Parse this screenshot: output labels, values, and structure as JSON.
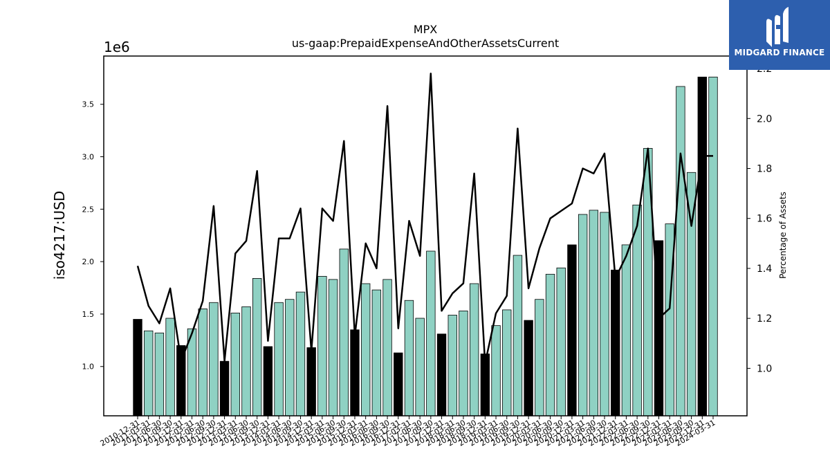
{
  "header": {
    "ticker": "MPX",
    "concept": "us-gaap:PrepaidExpenseAndOtherAssetsCurrent"
  },
  "logo": {
    "text": "MIDGARD FINANCE",
    "icon": "midgard-logo-icon",
    "background": "#2d5fae"
  },
  "colors": {
    "annual_bar": "#000000",
    "quarter_bar": "#8fd1c3",
    "line": "#000000"
  },
  "chart_data": {
    "type": "bar",
    "ylabel": "iso4217:USD",
    "y2label": "Percentage of Assets",
    "y_offset_label": "1e6",
    "ylim": [
      0.53,
      3.96
    ],
    "y2lim": [
      0.81,
      2.25
    ],
    "yticks": [
      1.0,
      1.5,
      2.0,
      2.5,
      3.0,
      3.5
    ],
    "ytick_labels": [
      "1.0",
      "1.5",
      "2.0",
      "2.5",
      "3.0",
      "3.5"
    ],
    "y2ticks": [
      1.0,
      1.2,
      1.4,
      1.6,
      1.8,
      2.0,
      2.2
    ],
    "y2tick_labels": [
      "1.0",
      "1.2",
      "1.4",
      "1.6",
      "1.8",
      "2.0",
      "2.2"
    ],
    "categories": [
      "2010-12-31",
      "2011-03-31",
      "2011-06-30",
      "2011-09-30",
      "2011-12-31",
      "2012-03-31",
      "2012-06-30",
      "2012-09-30",
      "2012-12-31",
      "2013-03-31",
      "2013-06-30",
      "2013-09-30",
      "2013-12-31",
      "2014-03-31",
      "2014-06-30",
      "2014-09-30",
      "2014-12-31",
      "2015-03-31",
      "2015-06-30",
      "2015-09-30",
      "2015-12-31",
      "2016-03-31",
      "2016-06-30",
      "2016-09-30",
      "2016-12-31",
      "2017-03-31",
      "2017-06-30",
      "2017-09-30",
      "2017-12-31",
      "2018-03-31",
      "2018-06-30",
      "2018-09-30",
      "2018-12-31",
      "2019-03-31",
      "2019-06-30",
      "2019-09-30",
      "2019-12-31",
      "2020-03-31",
      "2020-06-30",
      "2020-09-30",
      "2020-12-31",
      "2021-03-31",
      "2021-06-30",
      "2021-09-30",
      "2021-12-31",
      "2022-03-31",
      "2022-06-30",
      "2022-09-30",
      "2022-12-31",
      "2023-03-31",
      "2023-06-30",
      "2023-09-30",
      "2023-12-31",
      "2024-03-31"
    ],
    "annual": [
      true,
      false,
      false,
      false,
      true,
      false,
      false,
      false,
      true,
      false,
      false,
      false,
      true,
      false,
      false,
      false,
      true,
      false,
      false,
      false,
      true,
      false,
      false,
      false,
      true,
      false,
      false,
      false,
      true,
      false,
      false,
      false,
      true,
      false,
      false,
      false,
      true,
      false,
      false,
      false,
      true,
      false,
      false,
      false,
      true,
      false,
      false,
      false,
      true,
      false,
      false,
      false,
      true,
      false
    ],
    "series": [
      {
        "name": "iso4217:USD",
        "axis": "left",
        "type": "bar",
        "values": [
          1.45,
          1.34,
          1.32,
          1.46,
          1.2,
          1.36,
          1.55,
          1.61,
          1.05,
          1.51,
          1.57,
          1.84,
          1.19,
          1.61,
          1.64,
          1.71,
          1.18,
          1.86,
          1.83,
          2.12,
          1.35,
          1.79,
          1.73,
          1.83,
          1.13,
          1.63,
          1.46,
          2.1,
          1.31,
          1.49,
          1.53,
          1.79,
          1.12,
          1.39,
          1.54,
          2.06,
          1.44,
          1.64,
          1.88,
          1.94,
          2.16,
          2.45,
          2.49,
          2.47,
          1.92,
          2.16,
          2.54,
          3.08,
          2.2,
          2.36,
          3.67,
          2.85,
          3.76,
          3.76
        ]
      },
      {
        "name": "Percentage of Assets",
        "axis": "right",
        "type": "line",
        "values": [
          1.41,
          1.25,
          1.18,
          1.32,
          1.03,
          1.14,
          1.27,
          1.65,
          1.03,
          1.46,
          1.51,
          1.79,
          1.11,
          1.52,
          1.52,
          1.64,
          1.07,
          1.64,
          1.59,
          1.91,
          1.13,
          1.5,
          1.4,
          2.05,
          1.16,
          1.59,
          1.45,
          2.18,
          1.23,
          1.3,
          1.34,
          1.78,
          1.02,
          1.22,
          1.29,
          1.96,
          1.32,
          1.48,
          1.6,
          1.63,
          1.66,
          1.8,
          1.78,
          1.86,
          1.36,
          1.45,
          1.57,
          1.88,
          1.2,
          1.24,
          1.86,
          1.57,
          1.85,
          1.85
        ]
      }
    ]
  }
}
